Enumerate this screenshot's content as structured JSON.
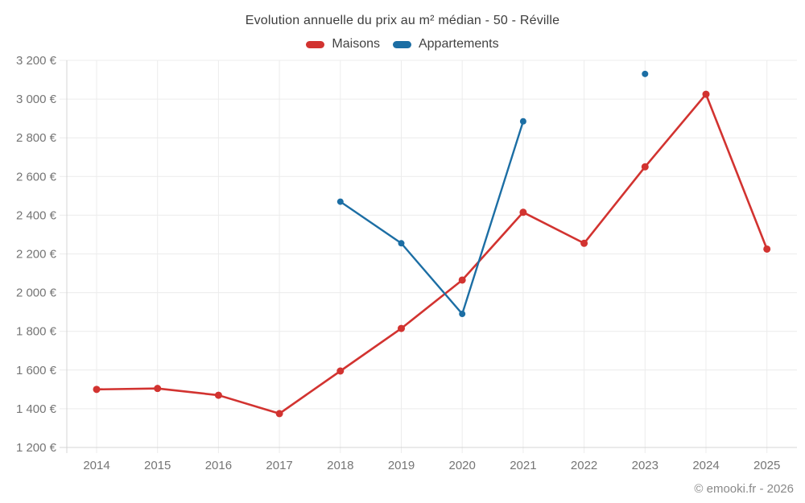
{
  "header": {
    "title": "Evolution annuelle du prix au m² médian - 50 - Réville"
  },
  "legend": [
    {
      "label": "Maisons",
      "color": "#d23330"
    },
    {
      "label": "Appartements",
      "color": "#1c6ea4"
    }
  ],
  "footer": {
    "credit": "© emooki.fr - 2026"
  },
  "chart_data": {
    "type": "line",
    "title": "Evolution annuelle du prix au m² médian - 50 - Réville",
    "xlabel": "",
    "ylabel": "",
    "currency": "€",
    "categories": [
      "2014",
      "2015",
      "2016",
      "2017",
      "2018",
      "2019",
      "2020",
      "2021",
      "2022",
      "2023",
      "2024",
      "2025"
    ],
    "series": [
      {
        "name": "Maisons",
        "color": "#d23330",
        "marker_radius": 4.5,
        "line_width": 2.6,
        "values": [
          1500,
          1505,
          1470,
          1375,
          1595,
          1815,
          2065,
          2415,
          2255,
          2650,
          3025,
          2225
        ]
      },
      {
        "name": "Appartements",
        "color": "#1c6ea4",
        "marker_radius": 4,
        "line_width": 2.4,
        "values": [
          null,
          null,
          null,
          null,
          2470,
          2255,
          1890,
          2885,
          null,
          3130,
          null,
          null
        ]
      }
    ],
    "ylim": [
      1200,
      3200
    ],
    "y_tick_step": 200,
    "y_tick_values": [
      1200,
      1400,
      1600,
      1800,
      2000,
      2200,
      2400,
      2600,
      2800,
      3000,
      3200
    ],
    "y_tick_labels": [
      "1 200 €",
      "1 400 €",
      "1 600 €",
      "1 800 €",
      "2 000 €",
      "2 200 €",
      "2 400 €",
      "2 600 €",
      "2 800 €",
      "3 000 €",
      "3 200 €"
    ],
    "grid": true,
    "grid_color": "#ececec",
    "axis_color": "#d4d4d4",
    "legend_position": "top"
  }
}
